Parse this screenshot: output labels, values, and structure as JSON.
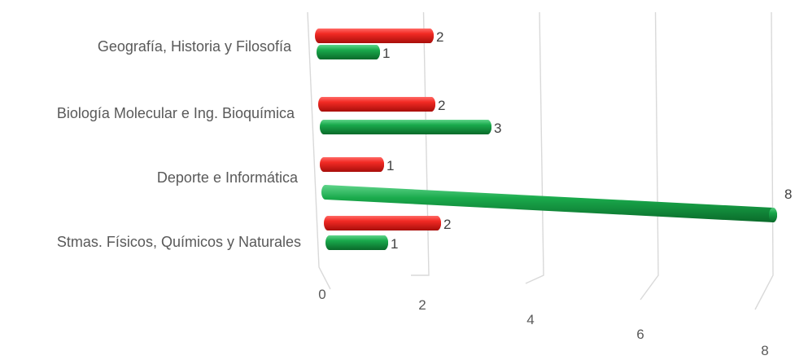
{
  "chart_data": {
    "type": "bar",
    "orientation": "horizontal",
    "style": "3d-cylinder",
    "categories": [
      "Geografía, Historia y Filosofía",
      "Biología Molecular e Ing. Bioquímica",
      "Deporte e Informática",
      "Stmas. Físicos, Químicos y Naturales"
    ],
    "series": [
      {
        "color": "#e8201c",
        "values": [
          2,
          2,
          1,
          2
        ]
      },
      {
        "color": "#14a044",
        "values": [
          1,
          3,
          8,
          1
        ]
      }
    ],
    "xticks": [
      "0",
      "2",
      "4",
      "6",
      "8"
    ],
    "xlim": [
      0,
      8
    ],
    "grid": true,
    "legend": "none",
    "title": "",
    "xlabel": "",
    "ylabel": ""
  }
}
